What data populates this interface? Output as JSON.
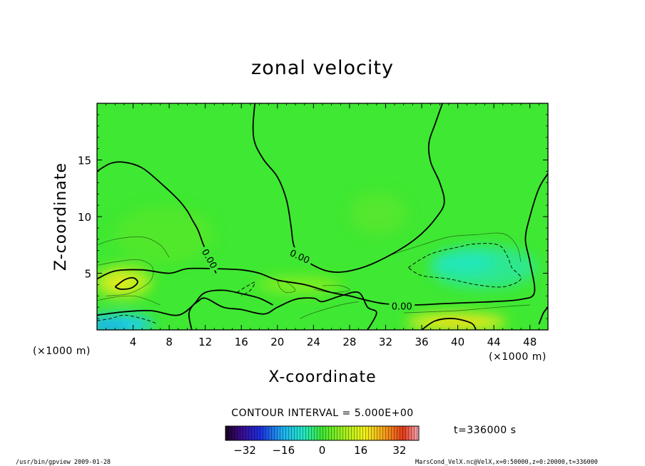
{
  "chart_data": {
    "type": "heatmap",
    "title": "zonal velocity",
    "xlabel": "X-coordinate",
    "ylabel": "Z-coordinate",
    "x_unit_left": "(×1000 m)",
    "x_unit_right": "(×1000 m)",
    "xlim": [
      0,
      50
    ],
    "ylim": [
      0,
      20
    ],
    "x_ticks": [
      4,
      8,
      12,
      16,
      20,
      24,
      28,
      32,
      36,
      40,
      44,
      48
    ],
    "y_ticks": [
      5,
      10,
      15
    ],
    "contour_interval_text": "CONTOUR INTERVAL = 5.000E+00",
    "contour_label": "0.00",
    "time_label": "t=336000 s",
    "colorbar": {
      "range": [
        -40,
        40
      ],
      "ticks": [
        -32,
        -16,
        0,
        16,
        32
      ]
    },
    "zero_contour_label_positions": [
      [
        12.5,
        6.3
      ],
      [
        22.5,
        6.5
      ],
      [
        33.8,
        2.1
      ]
    ],
    "zero_contours": [
      [
        [
          0,
          14
        ],
        [
          1.5,
          14.7
        ],
        [
          3,
          14.8
        ],
        [
          5,
          14.3
        ],
        [
          7,
          13
        ],
        [
          9,
          11.5
        ],
        [
          10,
          10.5
        ],
        [
          10.5,
          9.8
        ],
        [
          11.2,
          8.8
        ],
        [
          11.8,
          7.5
        ],
        [
          12.3,
          6.7
        ],
        [
          12.8,
          5.7
        ],
        [
          13.2,
          5
        ]
      ],
      [
        [
          17.5,
          20
        ],
        [
          17.3,
          18
        ],
        [
          17.5,
          16.5
        ],
        [
          18.5,
          15
        ],
        [
          20,
          13.5
        ],
        [
          21,
          11.5
        ],
        [
          21.5,
          9.2
        ],
        [
          21.8,
          7.5
        ],
        [
          22.5,
          6.5
        ],
        [
          24,
          5.7
        ],
        [
          25.5,
          5.2
        ],
        [
          27,
          5.1
        ],
        [
          29,
          5.4
        ],
        [
          31,
          6
        ],
        [
          34,
          7.3
        ],
        [
          36,
          8.5
        ],
        [
          37.5,
          9.8
        ],
        [
          38.5,
          11.2
        ],
        [
          38,
          13
        ],
        [
          37,
          14.8
        ],
        [
          36.8,
          16.5
        ],
        [
          37.5,
          18.2
        ],
        [
          38.3,
          20
        ]
      ],
      [
        [
          0,
          4.5
        ],
        [
          2,
          5.2
        ],
        [
          5,
          5.3
        ],
        [
          8,
          5
        ],
        [
          10,
          5.4
        ],
        [
          13,
          5.4
        ],
        [
          16,
          5.3
        ],
        [
          18,
          5
        ],
        [
          20,
          4.4
        ],
        [
          23,
          4
        ],
        [
          26,
          3.3
        ],
        [
          28,
          3
        ],
        [
          30,
          2.6
        ],
        [
          32,
          2.3
        ],
        [
          35,
          2.2
        ],
        [
          38,
          2.3
        ],
        [
          41,
          2.4
        ],
        [
          44,
          2.5
        ],
        [
          47,
          2.7
        ],
        [
          48.5,
          3.3
        ],
        [
          48,
          6
        ],
        [
          47.5,
          8
        ],
        [
          48,
          10
        ],
        [
          49,
          12.5
        ],
        [
          50,
          13.8
        ]
      ],
      [
        [
          0,
          1.3
        ],
        [
          3,
          1.6
        ],
        [
          6,
          1.7
        ],
        [
          9,
          1.3
        ],
        [
          11,
          2.4
        ],
        [
          12,
          2.8
        ],
        [
          14,
          2
        ],
        [
          16,
          1.8
        ],
        [
          18.5,
          1.4
        ],
        [
          20,
          2
        ],
        [
          22,
          2.7
        ],
        [
          24,
          2.8
        ],
        [
          25,
          2.5
        ],
        [
          27,
          3
        ],
        [
          29,
          3.3
        ],
        [
          30,
          2
        ],
        [
          31,
          1.5
        ],
        [
          30,
          0
        ]
      ],
      [
        [
          10.5,
          0
        ],
        [
          10.2,
          1.5
        ],
        [
          11,
          2.5
        ],
        [
          12,
          3.3
        ],
        [
          14,
          3.5
        ],
        [
          16,
          3.2
        ],
        [
          18,
          2.8
        ],
        [
          19.5,
          2.2
        ]
      ],
      [
        [
          2,
          3.8
        ],
        [
          3,
          4.4
        ],
        [
          4,
          4.6
        ],
        [
          4.5,
          4.2
        ],
        [
          3.8,
          3.7
        ],
        [
          2.6,
          3.6
        ],
        [
          2,
          3.8
        ]
      ],
      [
        [
          36,
          0
        ],
        [
          37.5,
          0.8
        ],
        [
          39.5,
          1
        ],
        [
          41.5,
          0.6
        ],
        [
          42,
          0
        ]
      ],
      [
        [
          49,
          0.5
        ],
        [
          49.5,
          1.5
        ],
        [
          50,
          2
        ]
      ]
    ],
    "neg_contours": [
      [
        [
          0,
          0.8
        ],
        [
          1.5,
          1
        ],
        [
          3,
          1.3
        ],
        [
          5,
          1
        ],
        [
          6.5,
          0.6
        ]
      ],
      [
        [
          34.5,
          5.5
        ],
        [
          37,
          6.7
        ],
        [
          40,
          7.3
        ],
        [
          42,
          7.6
        ],
        [
          44.5,
          7.5
        ],
        [
          45.5,
          6.5
        ],
        [
          46,
          5.5
        ],
        [
          47,
          4.5
        ],
        [
          45,
          3.8
        ],
        [
          42,
          4
        ],
        [
          39,
          4.5
        ],
        [
          36,
          4.8
        ],
        [
          34.5,
          5.5
        ]
      ],
      [
        [
          15.5,
          3.3
        ],
        [
          16.5,
          3.8
        ],
        [
          17.5,
          4.2
        ],
        [
          17,
          3.5
        ],
        [
          16,
          3
        ]
      ]
    ],
    "fine_contours": [
      [
        [
          0,
          5.7
        ],
        [
          2,
          6
        ],
        [
          4.5,
          6.2
        ],
        [
          6,
          5.7
        ],
        [
          6.2,
          4.8
        ],
        [
          5.5,
          4
        ],
        [
          3.5,
          3.2
        ],
        [
          1,
          3
        ]
      ],
      [
        [
          0,
          2.6
        ],
        [
          2,
          2.9
        ],
        [
          4,
          3
        ],
        [
          5.5,
          2.7
        ],
        [
          7,
          2.2
        ]
      ],
      [
        [
          20,
          4.3
        ],
        [
          21,
          4.2
        ],
        [
          22,
          3.5
        ],
        [
          21,
          3.3
        ],
        [
          20.3,
          3.7
        ],
        [
          20,
          4.3
        ]
      ],
      [
        [
          24,
          3.6
        ],
        [
          26,
          3.3
        ],
        [
          28,
          3.5
        ],
        [
          27,
          3.9
        ],
        [
          25,
          3.9
        ]
      ],
      [
        [
          22.5,
          1
        ],
        [
          24,
          1.5
        ],
        [
          27,
          2.2
        ],
        [
          29,
          2.5
        ]
      ],
      [
        [
          34,
          1.5
        ],
        [
          37,
          1.6
        ],
        [
          40,
          1.7
        ],
        [
          43,
          1.9
        ],
        [
          46,
          2.1
        ],
        [
          48,
          2.2
        ]
      ],
      [
        [
          32.5,
          6.6
        ],
        [
          36,
          7.5
        ],
        [
          39,
          8.2
        ],
        [
          42,
          8.4
        ],
        [
          45,
          8.5
        ],
        [
          46.5,
          7.5
        ],
        [
          47,
          6
        ]
      ],
      [
        [
          0,
          7.5
        ],
        [
          2,
          8
        ],
        [
          5,
          8.2
        ],
        [
          7,
          7.5
        ],
        [
          8,
          6.4
        ]
      ]
    ]
  },
  "footer": {
    "left": "/usr/bin/gpview  2009-01-28",
    "right": "MarsCond_VelX.nc@VelX,x=0:50000,z=0:20000,t=336000"
  },
  "colors": {
    "background_field": "#3fe832",
    "zero_contour": "#000000",
    "frame": "#000000"
  }
}
